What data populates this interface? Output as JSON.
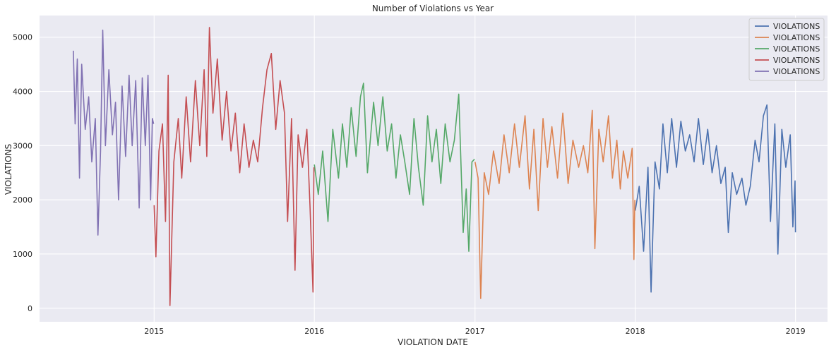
{
  "chart_data": {
    "type": "line",
    "title": "Number of Violations vs Year",
    "xlabel": "VIOLATION DATE",
    "ylabel": "VIOLATIONS",
    "xlim": [
      "2014-04-15",
      "2019-03-15"
    ],
    "ylim": [
      -250,
      5400
    ],
    "x_ticks": [
      "2015",
      "2016",
      "2017",
      "2018",
      "2019"
    ],
    "y_ticks": [
      0,
      1000,
      2000,
      3000,
      4000,
      5000
    ],
    "grid": true,
    "background": "#eaeaf2",
    "legend_position": "top-right",
    "series": [
      {
        "name": "VIOLATIONS",
        "color": "#4c72b0",
        "points": [
          [
            "2018-01-01",
            1800
          ],
          [
            "2018-01-10",
            2250
          ],
          [
            "2018-01-20",
            1050
          ],
          [
            "2018-01-30",
            2600
          ],
          [
            "2018-02-06",
            300
          ],
          [
            "2018-02-15",
            2700
          ],
          [
            "2018-02-25",
            2200
          ],
          [
            "2018-03-05",
            3400
          ],
          [
            "2018-03-15",
            2500
          ],
          [
            "2018-03-25",
            3500
          ],
          [
            "2018-04-05",
            2600
          ],
          [
            "2018-04-15",
            3450
          ],
          [
            "2018-04-25",
            2900
          ],
          [
            "2018-05-05",
            3200
          ],
          [
            "2018-05-15",
            2700
          ],
          [
            "2018-05-25",
            3500
          ],
          [
            "2018-06-05",
            2650
          ],
          [
            "2018-06-15",
            3300
          ],
          [
            "2018-06-25",
            2500
          ],
          [
            "2018-07-05",
            3000
          ],
          [
            "2018-07-15",
            2300
          ],
          [
            "2018-07-25",
            2600
          ],
          [
            "2018-08-01",
            1400
          ],
          [
            "2018-08-10",
            2500
          ],
          [
            "2018-08-20",
            2100
          ],
          [
            "2018-09-01",
            2400
          ],
          [
            "2018-09-10",
            1900
          ],
          [
            "2018-09-20",
            2250
          ],
          [
            "2018-10-01",
            3100
          ],
          [
            "2018-10-10",
            2700
          ],
          [
            "2018-10-20",
            3550
          ],
          [
            "2018-10-28",
            3750
          ],
          [
            "2018-11-05",
            1600
          ],
          [
            "2018-11-15",
            3400
          ],
          [
            "2018-11-22",
            1000
          ],
          [
            "2018-12-01",
            3300
          ],
          [
            "2018-12-10",
            2600
          ],
          [
            "2018-12-20",
            3200
          ],
          [
            "2018-12-26",
            1500
          ],
          [
            "2018-12-31",
            2350
          ],
          [
            "2019-01-01",
            1400
          ]
        ]
      },
      {
        "name": "VIOLATIONS",
        "color": "#dd8452",
        "points": [
          [
            "2017-01-01",
            2700
          ],
          [
            "2017-01-08",
            2400
          ],
          [
            "2017-01-14",
            180
          ],
          [
            "2017-01-22",
            2500
          ],
          [
            "2017-02-01",
            2100
          ],
          [
            "2017-02-12",
            2900
          ],
          [
            "2017-02-25",
            2300
          ],
          [
            "2017-03-08",
            3200
          ],
          [
            "2017-03-20",
            2500
          ],
          [
            "2017-04-01",
            3400
          ],
          [
            "2017-04-12",
            2600
          ],
          [
            "2017-04-25",
            3550
          ],
          [
            "2017-05-05",
            2200
          ],
          [
            "2017-05-15",
            3300
          ],
          [
            "2017-05-25",
            1800
          ],
          [
            "2017-06-05",
            3500
          ],
          [
            "2017-06-15",
            2600
          ],
          [
            "2017-06-25",
            3350
          ],
          [
            "2017-07-08",
            2400
          ],
          [
            "2017-07-20",
            3600
          ],
          [
            "2017-08-01",
            2300
          ],
          [
            "2017-08-12",
            3100
          ],
          [
            "2017-08-25",
            2600
          ],
          [
            "2017-09-05",
            3000
          ],
          [
            "2017-09-15",
            2500
          ],
          [
            "2017-09-25",
            3650
          ],
          [
            "2017-10-01",
            1100
          ],
          [
            "2017-10-10",
            3300
          ],
          [
            "2017-10-20",
            2700
          ],
          [
            "2017-11-01",
            3550
          ],
          [
            "2017-11-10",
            2400
          ],
          [
            "2017-11-20",
            3100
          ],
          [
            "2017-11-28",
            2200
          ],
          [
            "2017-12-05",
            2900
          ],
          [
            "2017-12-15",
            2400
          ],
          [
            "2017-12-25",
            2950
          ],
          [
            "2017-12-29",
            900
          ],
          [
            "2017-12-31",
            2000
          ]
        ]
      },
      {
        "name": "VIOLATIONS",
        "color": "#55a868",
        "points": [
          [
            "2016-01-01",
            2650
          ],
          [
            "2016-01-10",
            2100
          ],
          [
            "2016-01-20",
            2900
          ],
          [
            "2016-02-01",
            1600
          ],
          [
            "2016-02-12",
            3300
          ],
          [
            "2016-02-25",
            2400
          ],
          [
            "2016-03-05",
            3400
          ],
          [
            "2016-03-15",
            2600
          ],
          [
            "2016-03-25",
            3700
          ],
          [
            "2016-04-05",
            2800
          ],
          [
            "2016-04-15",
            3900
          ],
          [
            "2016-04-22",
            4150
          ],
          [
            "2016-05-01",
            2500
          ],
          [
            "2016-05-15",
            3800
          ],
          [
            "2016-05-25",
            3000
          ],
          [
            "2016-06-05",
            3900
          ],
          [
            "2016-06-15",
            2900
          ],
          [
            "2016-06-25",
            3400
          ],
          [
            "2016-07-05",
            2400
          ],
          [
            "2016-07-15",
            3200
          ],
          [
            "2016-07-25",
            2700
          ],
          [
            "2016-08-05",
            2100
          ],
          [
            "2016-08-15",
            3500
          ],
          [
            "2016-08-25",
            2600
          ],
          [
            "2016-09-05",
            1900
          ],
          [
            "2016-09-15",
            3550
          ],
          [
            "2016-09-25",
            2700
          ],
          [
            "2016-10-05",
            3300
          ],
          [
            "2016-10-15",
            2300
          ],
          [
            "2016-10-25",
            3400
          ],
          [
            "2016-11-05",
            2700
          ],
          [
            "2016-11-15",
            3100
          ],
          [
            "2016-11-25",
            3950
          ],
          [
            "2016-12-05",
            1400
          ],
          [
            "2016-12-12",
            2200
          ],
          [
            "2016-12-18",
            1050
          ],
          [
            "2016-12-25",
            2700
          ],
          [
            "2016-12-31",
            2750
          ]
        ]
      },
      {
        "name": "VIOLATIONS",
        "color": "#c44e52",
        "points": [
          [
            "2015-01-01",
            1900
          ],
          [
            "2015-01-05",
            950
          ],
          [
            "2015-01-12",
            2900
          ],
          [
            "2015-01-20",
            3400
          ],
          [
            "2015-01-27",
            1600
          ],
          [
            "2015-02-02",
            4300
          ],
          [
            "2015-02-06",
            50
          ],
          [
            "2015-02-15",
            2700
          ],
          [
            "2015-02-25",
            3500
          ],
          [
            "2015-03-05",
            2400
          ],
          [
            "2015-03-15",
            3900
          ],
          [
            "2015-03-25",
            2700
          ],
          [
            "2015-04-05",
            4200
          ],
          [
            "2015-04-15",
            3000
          ],
          [
            "2015-04-25",
            4400
          ],
          [
            "2015-05-01",
            2800
          ],
          [
            "2015-05-07",
            5180
          ],
          [
            "2015-05-15",
            3600
          ],
          [
            "2015-05-25",
            4600
          ],
          [
            "2015-06-05",
            3100
          ],
          [
            "2015-06-15",
            4000
          ],
          [
            "2015-06-25",
            2900
          ],
          [
            "2015-07-05",
            3600
          ],
          [
            "2015-07-15",
            2500
          ],
          [
            "2015-07-25",
            3400
          ],
          [
            "2015-08-05",
            2600
          ],
          [
            "2015-08-15",
            3100
          ],
          [
            "2015-08-25",
            2700
          ],
          [
            "2015-09-05",
            3700
          ],
          [
            "2015-09-15",
            4400
          ],
          [
            "2015-09-25",
            4700
          ],
          [
            "2015-10-05",
            3300
          ],
          [
            "2015-10-15",
            4200
          ],
          [
            "2015-10-25",
            3600
          ],
          [
            "2015-11-01",
            1600
          ],
          [
            "2015-11-10",
            3500
          ],
          [
            "2015-11-18",
            700
          ],
          [
            "2015-11-25",
            3200
          ],
          [
            "2015-12-05",
            2600
          ],
          [
            "2015-12-15",
            3300
          ],
          [
            "2015-12-22",
            1900
          ],
          [
            "2015-12-29",
            300
          ],
          [
            "2015-12-31",
            2600
          ]
        ]
      },
      {
        "name": "VIOLATIONS",
        "color": "#8172b3",
        "points": [
          [
            "2014-07-01",
            4750
          ],
          [
            "2014-07-05",
            3400
          ],
          [
            "2014-07-10",
            4600
          ],
          [
            "2014-07-15",
            2400
          ],
          [
            "2014-07-20",
            4500
          ],
          [
            "2014-07-28",
            3300
          ],
          [
            "2014-08-05",
            3900
          ],
          [
            "2014-08-12",
            2700
          ],
          [
            "2014-08-20",
            3500
          ],
          [
            "2014-08-26",
            1350
          ],
          [
            "2014-09-01",
            2900
          ],
          [
            "2014-09-06",
            5130
          ],
          [
            "2014-09-12",
            3000
          ],
          [
            "2014-09-20",
            4400
          ],
          [
            "2014-09-28",
            3200
          ],
          [
            "2014-10-05",
            3800
          ],
          [
            "2014-10-12",
            2000
          ],
          [
            "2014-10-20",
            4100
          ],
          [
            "2014-10-28",
            2800
          ],
          [
            "2014-11-05",
            4300
          ],
          [
            "2014-11-12",
            3000
          ],
          [
            "2014-11-20",
            4200
          ],
          [
            "2014-11-28",
            1850
          ],
          [
            "2014-12-05",
            4250
          ],
          [
            "2014-12-12",
            3000
          ],
          [
            "2014-12-18",
            4300
          ],
          [
            "2014-12-24",
            2000
          ],
          [
            "2014-12-28",
            3500
          ],
          [
            "2014-12-31",
            3400
          ]
        ]
      }
    ]
  }
}
